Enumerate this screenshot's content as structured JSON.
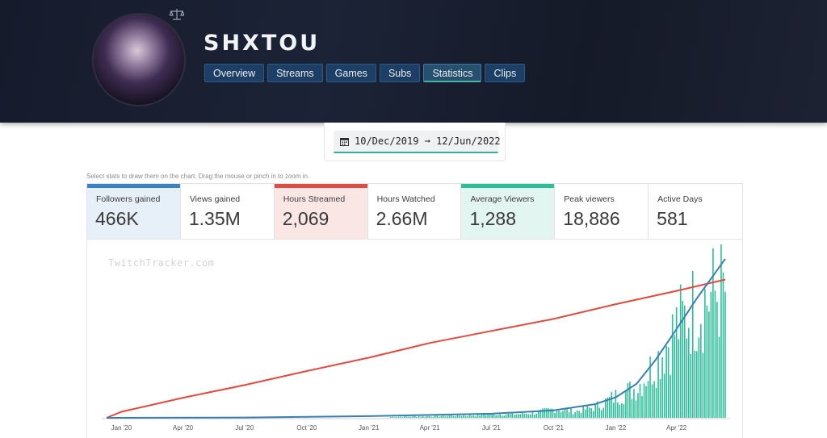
{
  "channel": {
    "name": "SHXTOU"
  },
  "nav": {
    "tabs": [
      {
        "label": "Overview",
        "active": false
      },
      {
        "label": "Streams",
        "active": false
      },
      {
        "label": "Games",
        "active": false
      },
      {
        "label": "Subs",
        "active": false
      },
      {
        "label": "Statistics",
        "active": true
      },
      {
        "label": "Clips",
        "active": false
      }
    ]
  },
  "date_range": {
    "text": "10/Dec/2019 ➞ 12/Jun/2022"
  },
  "hint": "Select stats to draw them on the chart. Drag the mouse or pinch in to zoom in.",
  "stats": [
    {
      "label": "Followers gained",
      "value": "466K",
      "selected": true,
      "color": "#3b82c4"
    },
    {
      "label": "Views gained",
      "value": "1.35M",
      "selected": false,
      "color": ""
    },
    {
      "label": "Hours Streamed",
      "value": "2,069",
      "selected": true,
      "color": "#e04b43"
    },
    {
      "label": "Hours Watched",
      "value": "2.66M",
      "selected": false,
      "color": ""
    },
    {
      "label": "Average Viewers",
      "value": "1,288",
      "selected": true,
      "color": "#2bbf99"
    },
    {
      "label": "Peak viewers",
      "value": "18,886",
      "selected": false,
      "color": ""
    },
    {
      "label": "Active Days",
      "value": "581",
      "selected": false,
      "color": ""
    }
  ],
  "watermark": "TwitchTracker.com",
  "colors": {
    "followers": "#3b7eb0",
    "hours": "#e04a3f",
    "viewers": "#2bbf99"
  },
  "chart_data": {
    "type": "line",
    "x_ticks": [
      "Jan '20",
      "Apr '20",
      "Jul '20",
      "Oct '20",
      "Jan '21",
      "Apr '21",
      "Jul '21",
      "Oct '21",
      "Jan '22",
      "Apr '22"
    ],
    "series": [
      {
        "name": "Hours Streamed",
        "kind": "line",
        "color": "#e04a3f",
        "x": [
          "2019-12-10",
          "2020-01-01",
          "2020-04-01",
          "2020-07-01",
          "2020-10-01",
          "2021-01-01",
          "2021-04-01",
          "2021-07-01",
          "2021-10-01",
          "2022-01-01",
          "2022-04-01",
          "2022-06-12"
        ],
        "y": [
          0,
          90,
          300,
          490,
          700,
          900,
          1120,
          1300,
          1480,
          1700,
          1900,
          2069
        ]
      },
      {
        "name": "Followers gained",
        "kind": "line",
        "color": "#3b7eb0",
        "x": [
          "2019-12-10",
          "2020-07-01",
          "2021-01-01",
          "2021-07-01",
          "2021-10-01",
          "2021-12-01",
          "2022-01-01",
          "2022-02-01",
          "2022-03-01",
          "2022-04-01",
          "2022-05-01",
          "2022-06-12"
        ],
        "y": [
          0,
          1000,
          5000,
          12000,
          22000,
          40000,
          60000,
          100000,
          170000,
          260000,
          350000,
          466000
        ]
      },
      {
        "name": "Average Viewers",
        "kind": "bar",
        "color": "#2bbf99",
        "x": [
          "2021-02-01",
          "2021-04-01",
          "2021-06-01",
          "2021-07-01",
          "2021-08-01",
          "2021-09-01",
          "2021-10-01",
          "2021-11-01",
          "2021-12-01",
          "2022-01-01",
          "2022-02-01",
          "2022-03-01",
          "2022-04-01",
          "2022-05-01",
          "2022-06-01"
        ],
        "y": [
          20,
          40,
          60,
          90,
          80,
          110,
          200,
          150,
          250,
          500,
          700,
          1300,
          2100,
          2600,
          2900
        ]
      }
    ]
  }
}
